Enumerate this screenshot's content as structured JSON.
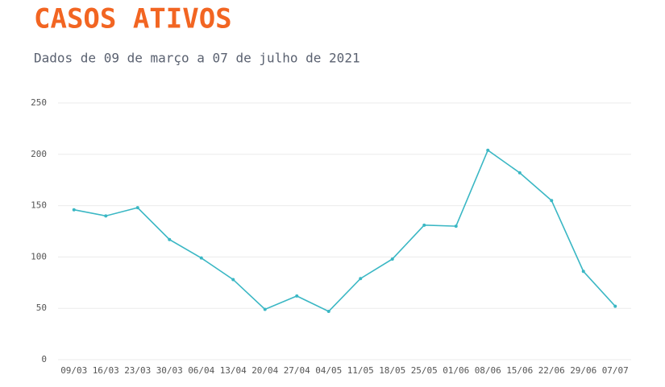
{
  "chart_data": {
    "type": "line",
    "title": "CASOS ATIVOS",
    "subtitle": "Dados de 09 de março a 07 de julho de 2021",
    "categories": [
      "09/03",
      "16/03",
      "23/03",
      "30/03",
      "06/04",
      "13/04",
      "20/04",
      "27/04",
      "04/05",
      "11/05",
      "18/05",
      "25/05",
      "01/06",
      "08/06",
      "15/06",
      "22/06",
      "29/06",
      "07/07"
    ],
    "values": [
      146,
      140,
      148,
      117,
      99,
      78,
      49,
      62,
      47,
      79,
      98,
      131,
      130,
      204,
      182,
      155,
      86,
      52
    ],
    "color": "#3ab7c4",
    "ylim": [
      0,
      250
    ],
    "yticks": [
      0,
      50,
      100,
      150,
      200,
      250
    ],
    "grid": true
  }
}
